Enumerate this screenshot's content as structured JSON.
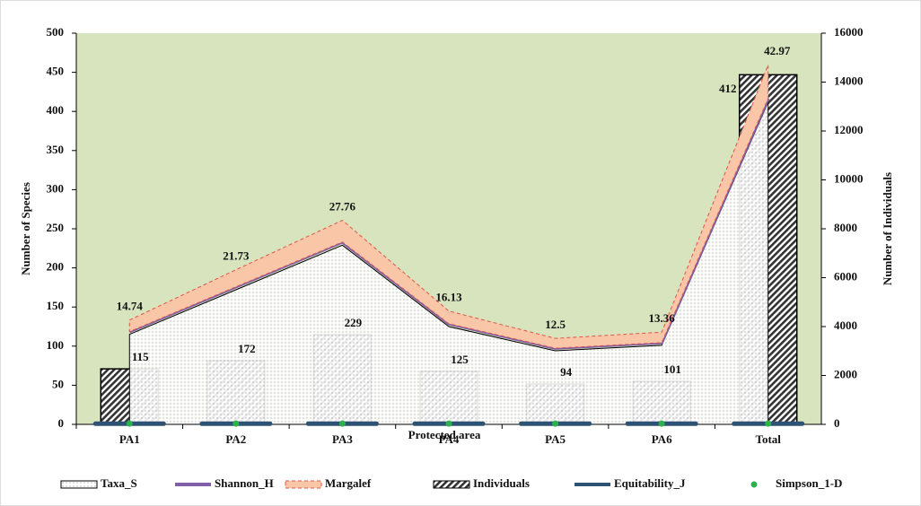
{
  "chart_data": {
    "type": "combo",
    "xlabel": "Protected area",
    "ylabel": "Number of Species",
    "y2label": "Number of Individuals",
    "categories": [
      "PA1",
      "PA2",
      "PA3",
      "PA4",
      "PA5",
      "PA6",
      "Total"
    ],
    "ylim": [
      0,
      500
    ],
    "yticks": [
      0,
      50,
      100,
      150,
      200,
      250,
      300,
      350,
      400,
      450,
      500
    ],
    "y2lim": [
      0,
      16000
    ],
    "y2ticks": [
      0,
      2000,
      4000,
      6000,
      8000,
      10000,
      12000,
      14000,
      16000
    ],
    "stacked": true,
    "background": "#d7e4bd",
    "series": [
      {
        "name": "Taxa_S",
        "type": "area",
        "stack": true,
        "color": "#ffffff",
        "values": [
          115,
          172,
          229,
          125,
          94,
          101,
          412
        ]
      },
      {
        "name": "Shannon_H",
        "type": "line",
        "stack": true,
        "color": "#7f5fa8",
        "values": [
          3.6,
          3.9,
          4.1,
          3.7,
          3.4,
          3.5,
          4.6
        ]
      },
      {
        "name": "Margalef",
        "type": "area",
        "stack": true,
        "color": "#f9c6a8",
        "values": [
          14.74,
          21.73,
          27.76,
          16.13,
          12.5,
          13.36,
          42.97
        ]
      },
      {
        "name": "Individuals",
        "type": "bar",
        "axis": "y2",
        "color": "#333333",
        "values": [
          2270,
          2600,
          3670,
          2170,
          1650,
          1760,
          14300
        ]
      },
      {
        "name": "Equitability_J",
        "type": "line",
        "color": "#2e5273",
        "values": [
          0.8,
          0.8,
          0.8,
          0.8,
          0.8,
          0.8,
          0.8
        ]
      },
      {
        "name": "Simpson_1-D",
        "type": "scatter",
        "color": "#2db14d",
        "values": [
          0.95,
          0.96,
          0.97,
          0.95,
          0.94,
          0.94,
          0.98
        ]
      }
    ]
  }
}
